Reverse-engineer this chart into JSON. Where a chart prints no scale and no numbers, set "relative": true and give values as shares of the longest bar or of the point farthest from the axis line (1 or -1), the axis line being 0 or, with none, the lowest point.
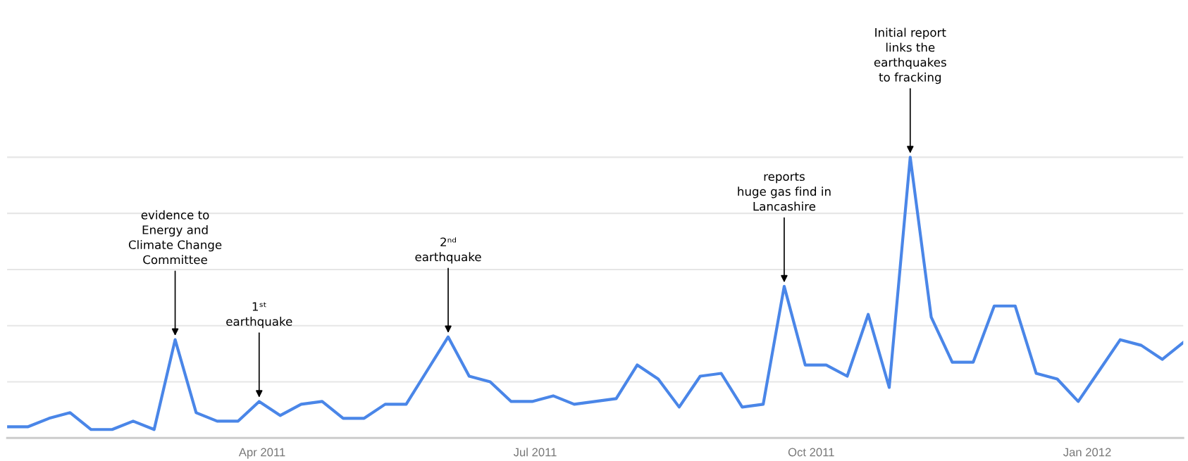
{
  "chart_data": {
    "type": "line",
    "relative": true,
    "color": "#4a86e8",
    "grid": "y",
    "legend": false,
    "marker": "none",
    "line_style": "solid",
    "x": [
      "2011-01-06",
      "2011-01-13",
      "2011-01-20",
      "2011-01-27",
      "2011-02-03",
      "2011-02-10",
      "2011-02-17",
      "2011-02-24",
      "2011-03-03",
      "2011-03-10",
      "2011-03-17",
      "2011-03-24",
      "2011-03-31",
      "2011-04-07",
      "2011-04-14",
      "2011-04-21",
      "2011-04-28",
      "2011-05-05",
      "2011-05-12",
      "2011-05-19",
      "2011-05-26",
      "2011-06-02",
      "2011-06-09",
      "2011-06-16",
      "2011-06-23",
      "2011-06-30",
      "2011-07-07",
      "2011-07-14",
      "2011-07-21",
      "2011-07-28",
      "2011-08-04",
      "2011-08-11",
      "2011-08-18",
      "2011-08-25",
      "2011-09-01",
      "2011-09-08",
      "2011-09-15",
      "2011-09-22",
      "2011-09-29",
      "2011-10-06",
      "2011-10-13",
      "2011-10-20",
      "2011-10-27",
      "2011-11-03",
      "2011-11-10",
      "2011-11-17",
      "2011-11-24",
      "2011-12-01",
      "2011-12-08",
      "2011-12-15",
      "2011-12-22",
      "2011-12-29",
      "2012-01-05",
      "2012-01-12",
      "2012-01-19",
      "2012-01-26",
      "2012-02-02"
    ],
    "values": [
      0.04,
      0.04,
      0.07,
      0.09,
      0.03,
      0.03,
      0.06,
      0.03,
      0.35,
      0.09,
      0.06,
      0.06,
      0.13,
      0.08,
      0.12,
      0.13,
      0.07,
      0.07,
      0.12,
      0.12,
      0.24,
      0.36,
      0.22,
      0.2,
      0.13,
      0.13,
      0.15,
      0.12,
      0.13,
      0.14,
      0.26,
      0.21,
      0.11,
      0.22,
      0.23,
      0.11,
      0.12,
      0.54,
      0.26,
      0.26,
      0.22,
      0.44,
      0.18,
      1,
      0.43,
      0.27,
      0.27,
      0.47,
      0.47,
      0.23,
      0.21,
      0.13,
      0.24,
      0.35,
      0.33,
      0.28,
      0.34
    ],
    "xlim": [
      "2011-01-06",
      "2012-02-02"
    ],
    "xticks": [
      {
        "value": "2011-04-01",
        "label": "Apr 2011"
      },
      {
        "value": "2011-07-01",
        "label": "Jul 2011"
      },
      {
        "value": "2011-10-01",
        "label": "Oct 2011"
      },
      {
        "value": "2012-01-01",
        "label": "Jan 2012"
      }
    ],
    "annotations": [
      {
        "text": "evidence to\nEnergy and\nClimate Change\nCommittee",
        "x": "2011-03-03",
        "y": 0.35
      },
      {
        "text": "1ˢᵗ\nearthquake",
        "x": "2011-03-31",
        "y": 0.13
      },
      {
        "text": "2ⁿᵈ\nearthquake",
        "x": "2011-06-02",
        "y": 0.36
      },
      {
        "text": "reports\nhuge gas find in\nLancashire",
        "x": "2011-09-22",
        "y": 0.54
      },
      {
        "text": "Initial report\nlinks the\nearthquakes\nto fracking",
        "x": "2011-11-03",
        "y": 1
      }
    ]
  }
}
